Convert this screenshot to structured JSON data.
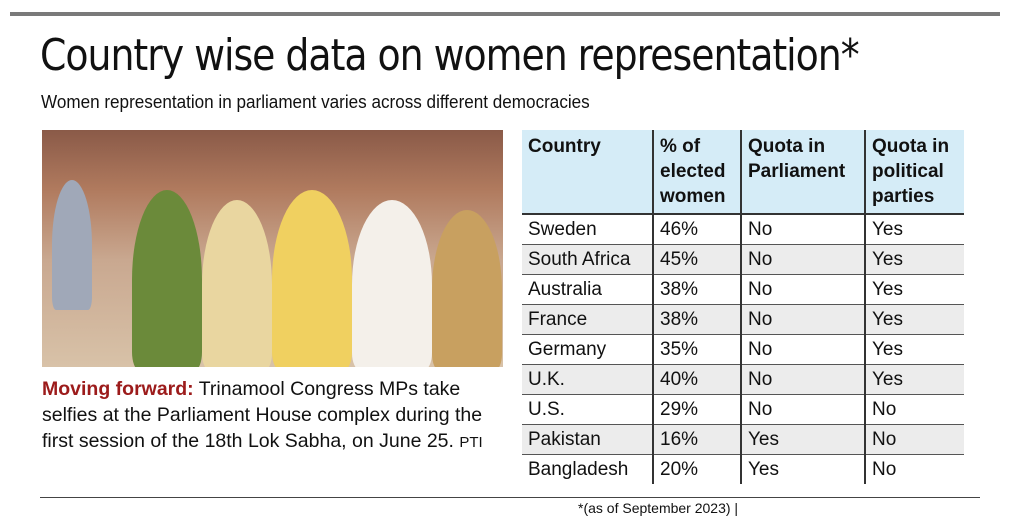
{
  "title": "Country wise data on women representation*",
  "subtitle": "Women representation in parliament varies across different democracies",
  "caption": {
    "lead": "Moving forward:",
    "text": " Trinamool Congress MPs take selfies at the Parliament House complex during the first session of the 18th Lok Sabha, on June 25.",
    "credit": "PTI"
  },
  "table": {
    "headers": [
      "Country",
      "% of elected women",
      "Quota in Parliament",
      "Quota in political parties"
    ],
    "rows": [
      [
        "Sweden",
        "46%",
        "No",
        "Yes"
      ],
      [
        "South Africa",
        "45%",
        "No",
        "Yes"
      ],
      [
        "Australia",
        "38%",
        "No",
        "Yes"
      ],
      [
        "France",
        "38%",
        "No",
        "Yes"
      ],
      [
        "Germany",
        "35%",
        "No",
        "Yes"
      ],
      [
        "U.K.",
        "40%",
        "No",
        "Yes"
      ],
      [
        "U.S.",
        "29%",
        "No",
        "No"
      ],
      [
        "Pakistan",
        "16%",
        "Yes",
        "No"
      ],
      [
        "Bangladesh",
        "20%",
        "Yes",
        "No"
      ]
    ]
  },
  "footnote": "*(as of September 2023) |"
}
